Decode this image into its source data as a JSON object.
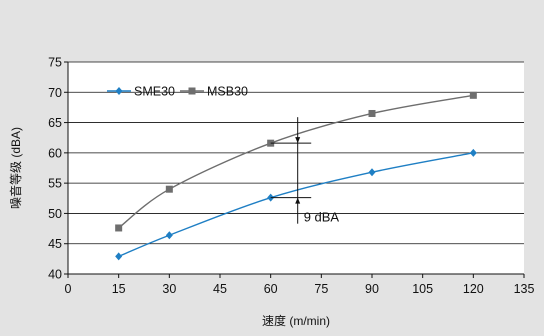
{
  "chart_data": {
    "type": "line",
    "xlabel": "速度 (m/min)",
    "ylabel": "噪音等级 (dBA)",
    "xlim": [
      0,
      135
    ],
    "ylim": [
      40,
      75
    ],
    "x_ticks": [
      0,
      15,
      30,
      45,
      60,
      75,
      90,
      105,
      120,
      135
    ],
    "y_ticks": [
      40,
      45,
      50,
      55,
      60,
      65,
      70,
      75
    ],
    "grid": "horizontal",
    "legend_position": "top-left",
    "series": [
      {
        "name": "SME30",
        "color": "#1f7fc4",
        "marker": "diamond",
        "x": [
          15,
          30,
          60,
          90,
          120
        ],
        "y": [
          42.9,
          46.4,
          52.6,
          56.8,
          60.0
        ]
      },
      {
        "name": "MSB30",
        "color": "#6e6e6e",
        "marker": "square",
        "x": [
          15,
          30,
          60,
          90,
          120
        ],
        "y": [
          47.6,
          54.0,
          61.6,
          66.5,
          69.5
        ]
      }
    ],
    "annotations": [
      {
        "text": "9 dBA",
        "x": 68,
        "y_from": 52.6,
        "y_to": 61.6
      }
    ]
  }
}
